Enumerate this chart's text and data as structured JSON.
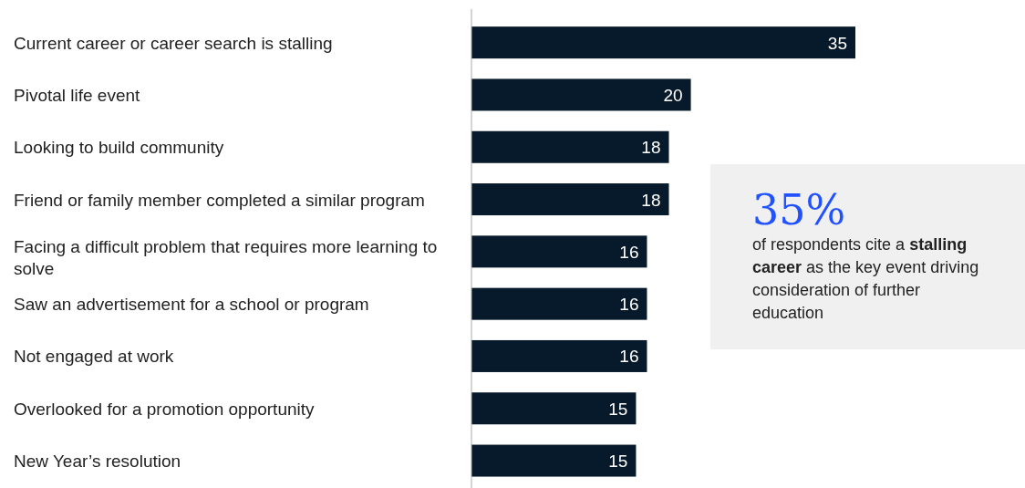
{
  "chart_data": {
    "type": "bar",
    "orientation": "horizontal",
    "categories": [
      "Current career or career search is stalling",
      "Pivotal life event",
      "Looking to build community",
      "Friend or family member completed a similar program",
      "Facing a difficult problem that requires more learning to solve",
      "Saw an advertisement for a school or program",
      "Not engaged at work",
      "Overlooked for a promotion opportunity",
      "New Year’s resolution"
    ],
    "values": [
      35,
      20,
      18,
      18,
      16,
      16,
      16,
      15,
      15
    ],
    "color": "#061a2b",
    "data_labels": true,
    "annotations": [
      "35%",
      "of respondents cite a",
      "stalling career",
      "as the key event driving consideration of further education"
    ]
  }
}
